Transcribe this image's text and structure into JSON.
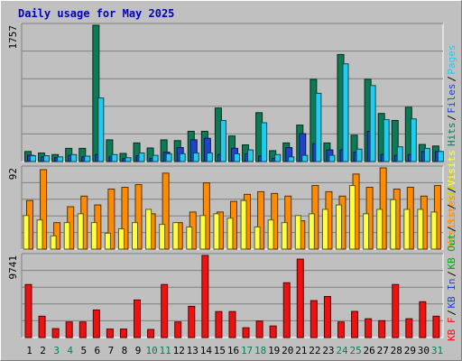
{
  "title": "Daily usage for May 2025",
  "colors": {
    "frame_bg": "#C0C0C0",
    "border_light": "#FFFFFF",
    "border_dark": "#808080",
    "title": "#0000BB",
    "weekday_label": "#000000",
    "weekend_label": "#00805C",
    "hits": "#0C7A55",
    "files": "#1E44CC",
    "pages": "#22CCEE",
    "visits": "#FF8C00",
    "sites": "#FFFF44",
    "kbf": "#EE1111"
  },
  "chart_data": [
    {
      "type": "bar",
      "panel": "top",
      "max_label": "1757",
      "ylim": [
        0,
        1757
      ],
      "legend": [
        {
          "text": "Hits",
          "color": "#0C7A55"
        },
        {
          "text": "Files",
          "color": "#1E44CC"
        },
        {
          "text": "Pages",
          "color": "#22CCEE"
        }
      ],
      "categories": [
        "1",
        "2",
        "3",
        "4",
        "5",
        "6",
        "7",
        "8",
        "9",
        "10",
        "11",
        "12",
        "13",
        "14",
        "15",
        "16",
        "17",
        "18",
        "19",
        "20",
        "21",
        "22",
        "23",
        "24",
        "25",
        "26",
        "27",
        "28",
        "29",
        "30",
        "31"
      ],
      "series": [
        {
          "name": "Hits",
          "values": [
            130,
            110,
            90,
            170,
            170,
            1757,
            280,
            105,
            240,
            175,
            280,
            270,
            390,
            390,
            690,
            330,
            215,
            630,
            140,
            240,
            470,
            1060,
            240,
            1380,
            340,
            1060,
            620,
            530,
            700,
            220,
            200
          ]
        },
        {
          "name": "Files",
          "values": [
            80,
            60,
            50,
            80,
            60,
            90,
            60,
            40,
            75,
            40,
            120,
            180,
            280,
            300,
            90,
            170,
            100,
            70,
            40,
            180,
            360,
            230,
            150,
            150,
            120,
            390,
            90,
            80,
            90,
            130,
            130
          ]
        },
        {
          "name": "Pages",
          "values": [
            75,
            75,
            60,
            90,
            70,
            820,
            90,
            50,
            110,
            80,
            100,
            100,
            110,
            110,
            530,
            100,
            150,
            500,
            90,
            60,
            80,
            880,
            80,
            1260,
            160,
            980,
            540,
            190,
            550,
            170,
            130
          ]
        }
      ]
    },
    {
      "type": "bar",
      "panel": "middle",
      "max_label": "92",
      "ylim": [
        0,
        92
      ],
      "legend": [
        {
          "text": "Visits",
          "color": "#FF8C00"
        },
        {
          "text": "Sites",
          "color": "#CCCC00"
        }
      ],
      "categories": [
        "1",
        "2",
        "3",
        "4",
        "5",
        "6",
        "7",
        "8",
        "9",
        "10",
        "11",
        "12",
        "13",
        "14",
        "15",
        "16",
        "17",
        "18",
        "19",
        "20",
        "21",
        "22",
        "23",
        "24",
        "25",
        "26",
        "27",
        "28",
        "29",
        "30",
        "31"
      ],
      "series": [
        {
          "name": "Visits",
          "values": [
            55,
            90,
            30,
            48,
            60,
            50,
            68,
            70,
            73,
            40,
            86,
            30,
            42,
            75,
            42,
            54,
            62,
            65,
            63,
            60,
            32,
            72,
            65,
            60,
            85,
            70,
            92,
            68,
            70,
            60,
            72
          ]
        },
        {
          "name": "Sites",
          "values": [
            38,
            33,
            15,
            30,
            40,
            30,
            18,
            23,
            30,
            45,
            28,
            30,
            25,
            38,
            40,
            35,
            55,
            25,
            33,
            30,
            38,
            40,
            45,
            50,
            72,
            40,
            45,
            56,
            45,
            45,
            42
          ]
        }
      ]
    },
    {
      "type": "bar",
      "panel": "bottom",
      "max_label": "9741",
      "ylim": [
        0,
        9741
      ],
      "legend": [
        {
          "text": "KB F",
          "color": "#EE1111"
        },
        {
          "text": "KB In",
          "color": "#1E44CC"
        },
        {
          "text": "KB Out",
          "color": "#00AA00"
        },
        {
          "text": "Sites",
          "color": "#FF8C00"
        },
        {
          "text": "Visits",
          "color": "#FFFF44"
        }
      ],
      "categories": [
        "1",
        "2",
        "3",
        "4",
        "5",
        "6",
        "7",
        "8",
        "9",
        "10",
        "11",
        "12",
        "13",
        "14",
        "15",
        "16",
        "17",
        "18",
        "19",
        "20",
        "21",
        "22",
        "23",
        "24",
        "25",
        "26",
        "27",
        "28",
        "29",
        "30",
        "31"
      ],
      "series": [
        {
          "name": "KB F",
          "values": [
            6290,
            2530,
            1060,
            1850,
            1850,
            3270,
            1010,
            1010,
            4460,
            960,
            6290,
            1850,
            3700,
            9741,
            3080,
            3080,
            1160,
            1960,
            1370,
            6500,
            9300,
            4380,
            4870,
            1850,
            3100,
            2230,
            2000,
            6290,
            2230,
            4250,
            2530
          ]
        }
      ]
    }
  ]
}
